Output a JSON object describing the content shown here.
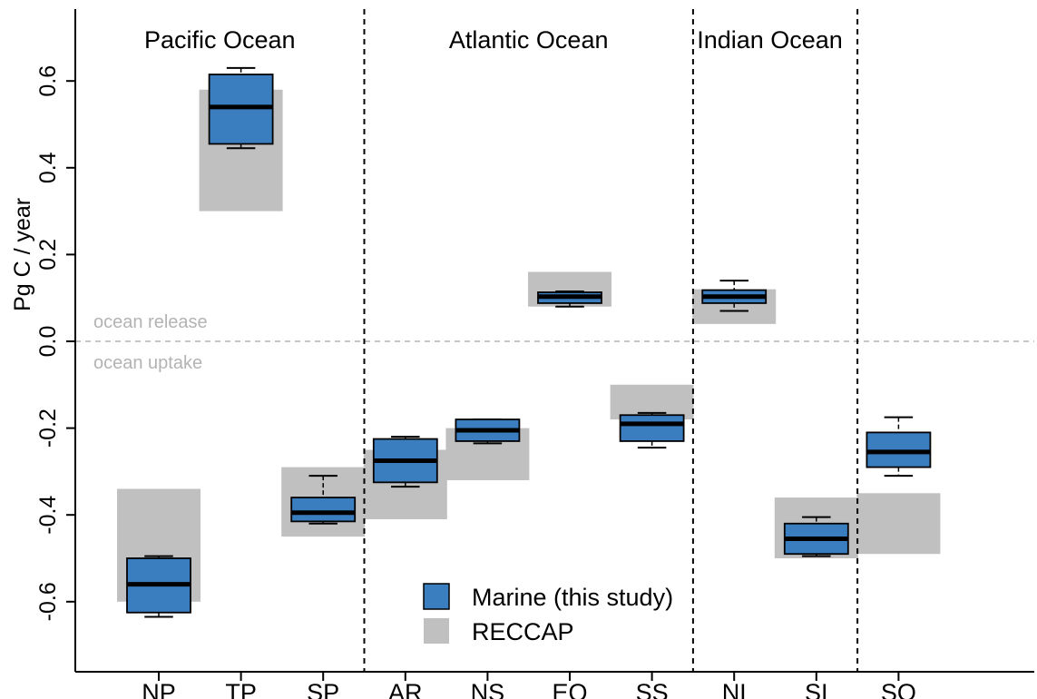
{
  "chart_data": {
    "type": "boxplot",
    "ylabel": "Pg C / year",
    "ylim": [
      -0.75,
      0.75
    ],
    "yticks": [
      -0.6,
      -0.4,
      -0.2,
      0.0,
      0.2,
      0.4,
      0.6
    ],
    "ytick_labels": [
      "-0.6",
      "-0.4",
      "-0.2",
      "0.0",
      "0.2",
      "0.4",
      "0.6"
    ],
    "categories": [
      "NP",
      "TP",
      "SP",
      "AR",
      "NS",
      "EQ",
      "SS",
      "NI",
      "SI",
      "SO"
    ],
    "regions": [
      {
        "label": "Pacific Ocean",
        "first": 0,
        "last": 2
      },
      {
        "label": "Atlantic Ocean",
        "first": 3,
        "last": 6
      },
      {
        "label": "Indian Ocean",
        "first": 7,
        "last": 8
      }
    ],
    "series": [
      {
        "name": "Marine (this study)",
        "color": "#3a7ebf",
        "boxes": [
          {
            "whisker_low": -0.635,
            "q1": -0.625,
            "median": -0.56,
            "q3": -0.5,
            "whisker_high": -0.495
          },
          {
            "whisker_low": 0.445,
            "q1": 0.455,
            "median": 0.54,
            "q3": 0.615,
            "whisker_high": 0.63
          },
          {
            "whisker_low": -0.42,
            "q1": -0.415,
            "median": -0.395,
            "q3": -0.36,
            "whisker_high": -0.31
          },
          {
            "whisker_low": -0.335,
            "q1": -0.325,
            "median": -0.275,
            "q3": -0.225,
            "whisker_high": -0.22
          },
          {
            "whisker_low": -0.235,
            "q1": -0.23,
            "median": -0.205,
            "q3": -0.18,
            "whisker_high": -0.18
          },
          {
            "whisker_low": 0.08,
            "q1": 0.088,
            "median": 0.103,
            "q3": 0.113,
            "whisker_high": 0.115
          },
          {
            "whisker_low": -0.245,
            "q1": -0.23,
            "median": -0.19,
            "q3": -0.17,
            "whisker_high": -0.165
          },
          {
            "whisker_low": 0.07,
            "q1": 0.088,
            "median": 0.103,
            "q3": 0.118,
            "whisker_high": 0.14
          },
          {
            "whisker_low": -0.495,
            "q1": -0.49,
            "median": -0.455,
            "q3": -0.42,
            "whisker_high": -0.405
          },
          {
            "whisker_low": -0.31,
            "q1": -0.29,
            "median": -0.255,
            "q3": -0.21,
            "whisker_high": -0.175
          }
        ]
      },
      {
        "name": "RECCAP",
        "color": "#c0c0c0",
        "ranges": [
          [
            -0.6,
            -0.34
          ],
          [
            0.3,
            0.58
          ],
          [
            -0.45,
            -0.29
          ],
          [
            -0.41,
            -0.25
          ],
          [
            -0.32,
            -0.2
          ],
          [
            0.08,
            0.16
          ],
          [
            -0.18,
            -0.1
          ],
          [
            0.04,
            0.12
          ],
          [
            -0.5,
            -0.36
          ],
          [
            -0.49,
            -0.35
          ]
        ]
      }
    ],
    "annotations": {
      "above_zero": "ocean release",
      "below_zero": "ocean uptake"
    },
    "grid": false,
    "legend_position": "bottom-center"
  }
}
